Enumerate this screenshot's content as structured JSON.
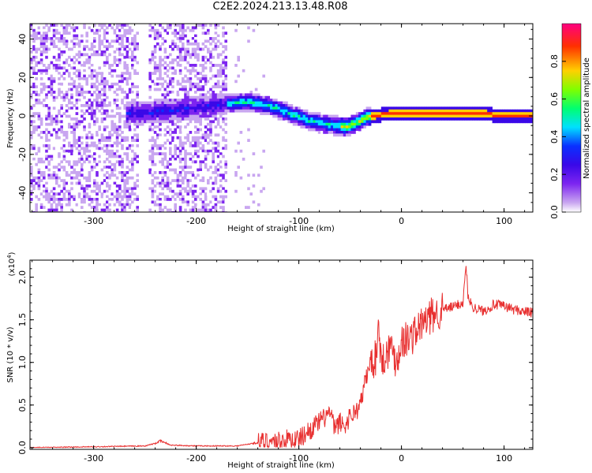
{
  "title": "C2E2.2024.213.13.48.R08",
  "chart_data": [
    {
      "type": "heatmap",
      "xlabel": "Height of straight line (km)",
      "ylabel": "Frequency (Hz)",
      "xlim": [
        -362,
        128
      ],
      "ylim": [
        -50,
        48
      ],
      "x_ticks": [
        -300,
        -200,
        -100,
        0,
        100
      ],
      "x_tick_labels": [
        "-300",
        "-200",
        "-100",
        "0",
        "100"
      ],
      "y_ticks": [
        40,
        20,
        0,
        -20,
        -40
      ],
      "y_tick_labels": [
        "40",
        "20",
        "0",
        "-20",
        "-40"
      ],
      "colorbar": {
        "label": "Normalized spectral amplitude",
        "range": [
          0,
          1
        ],
        "ticks": [
          0.0,
          0.2,
          0.4,
          0.6,
          0.8
        ],
        "tick_labels": [
          "0.0",
          "0.2",
          "0.4",
          "0.6",
          "0.8"
        ],
        "colors": [
          "#ffffff",
          "#c9a6f0",
          "#7d25f0",
          "#3a08e8",
          "#0a30ff",
          "#00e0ff",
          "#00ff70",
          "#7fff00",
          "#ffd000",
          "#ff3000",
          "#ff0080"
        ]
      },
      "ridge": {
        "x": [
          -260,
          -240,
          -200,
          -170,
          -150,
          -130,
          -110,
          -90,
          -70,
          -55,
          -45,
          -35,
          -25,
          -10,
          0,
          40,
          80,
          90,
          100,
          128
        ],
        "frequency": [
          2,
          3,
          5,
          7,
          8,
          6,
          2,
          -2,
          -4,
          -5,
          -3,
          0,
          1,
          2,
          2,
          2,
          2,
          1,
          1,
          1
        ]
      },
      "noise_region_x": [
        -362,
        -170
      ],
      "gap_region_x": [
        -258,
        -248
      ]
    },
    {
      "type": "line",
      "xlabel": "Height of straight line (km)",
      "ylabel": "SNR (10 * v/v)",
      "y_multiplier": "(x10",
      "y_multiplier_exp": "4",
      "y_multiplier_close": ")",
      "xlim": [
        -362,
        128
      ],
      "ylim": [
        -0.02,
        2.2
      ],
      "x_ticks": [
        -300,
        -200,
        -100,
        0,
        100
      ],
      "x_tick_labels": [
        "-300",
        "-200",
        "-100",
        "0",
        "100"
      ],
      "y_ticks": [
        0.0,
        0.5,
        1.0,
        1.5,
        2.0
      ],
      "y_tick_labels": [
        "0.0",
        "0.5",
        "1.0",
        "1.5",
        "2.0"
      ],
      "series": [
        {
          "color": "#e83030",
          "x": [
            -362,
            -300,
            -250,
            -240,
            -235,
            -225,
            -200,
            -160,
            -140,
            -120,
            -110,
            -100,
            -90,
            -80,
            -75,
            -70,
            -65,
            -60,
            -55,
            -50,
            -45,
            -40,
            -35,
            -30,
            -25,
            -22,
            -20,
            -15,
            -10,
            -5,
            0,
            10,
            20,
            30,
            40,
            50,
            55,
            60,
            63,
            65,
            70,
            80,
            90,
            100,
            110,
            128
          ],
          "y": [
            0.0,
            0.01,
            0.02,
            0.05,
            0.08,
            0.03,
            0.02,
            0.02,
            0.06,
            0.08,
            0.1,
            0.1,
            0.2,
            0.3,
            0.35,
            0.42,
            0.22,
            0.3,
            0.25,
            0.38,
            0.42,
            0.5,
            0.8,
            1.0,
            1.05,
            1.5,
            1.0,
            1.1,
            1.2,
            1.0,
            1.25,
            1.3,
            1.45,
            1.55,
            1.62,
            1.65,
            1.68,
            1.7,
            2.15,
            1.75,
            1.65,
            1.6,
            1.68,
            1.66,
            1.62,
            1.58
          ]
        }
      ]
    }
  ]
}
